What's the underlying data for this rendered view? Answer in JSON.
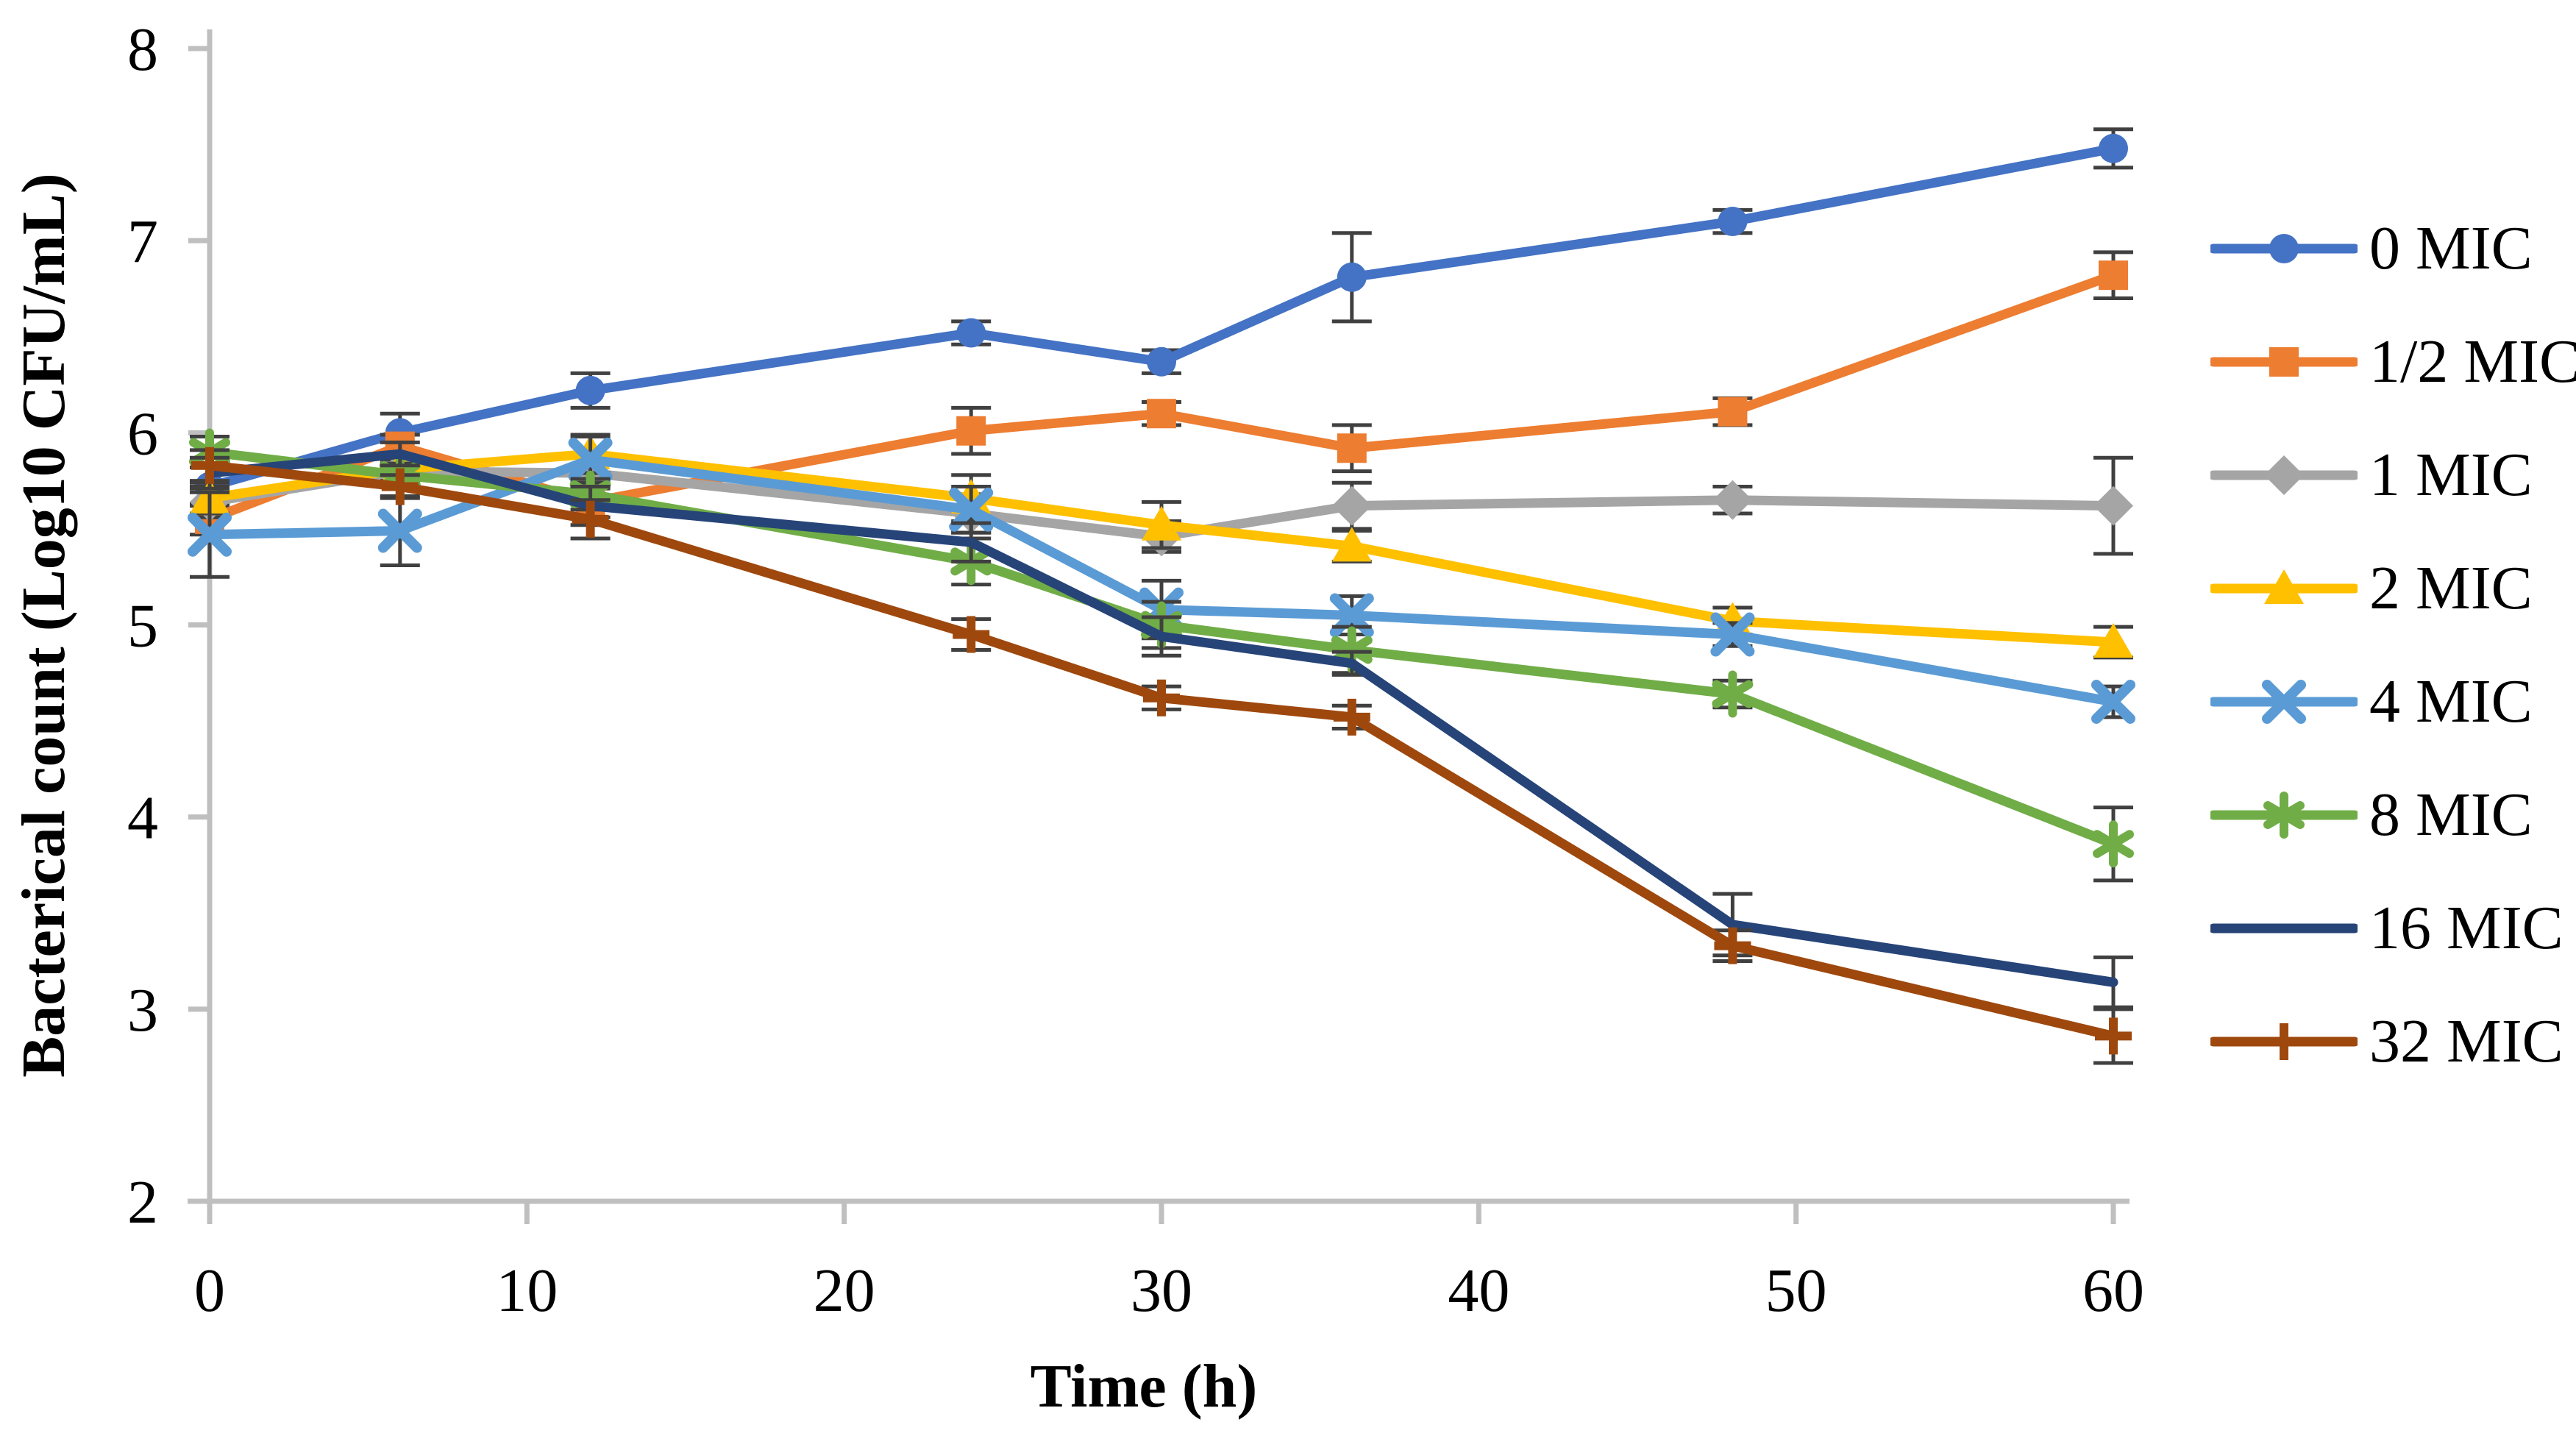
{
  "figure": {
    "background": "#FFFFFF",
    "y_axis_title": "Bacterical count (Log10 CFU/mL)",
    "x_axis_title": "Time (h)"
  },
  "chart_data": {
    "type": "line",
    "title": "",
    "xlabel": "Time (h)",
    "ylabel": "Bacterical count (Log10 CFU/mL)",
    "xlim": [
      0,
      60
    ],
    "ylim": [
      2,
      8
    ],
    "x_ticks": [
      0,
      10,
      20,
      30,
      40,
      50,
      60
    ],
    "y_ticks": [
      8,
      7,
      6,
      5,
      4,
      3,
      2
    ],
    "grid": false,
    "legend_position": "right",
    "axis_color": "#BFBFBF",
    "error_bar_color": "#404040",
    "text_color": "#000000",
    "x": [
      0,
      6,
      12,
      24,
      30,
      36,
      48,
      60
    ],
    "series": [
      {
        "name": "0 MIC",
        "color": "#4472C4",
        "marker": "circle",
        "values": [
          5.72,
          6.0,
          6.22,
          6.52,
          6.37,
          6.81,
          7.1,
          7.48
        ],
        "errors": [
          0.1,
          0.1,
          0.09,
          0.06,
          0.06,
          0.23,
          0.06,
          0.1
        ]
      },
      {
        "name": "1/2 MIC",
        "color": "#ED7D31",
        "marker": "square",
        "values": [
          5.55,
          5.93,
          5.64,
          6.01,
          6.1,
          5.92,
          6.11,
          6.82
        ],
        "errors": [
          0.08,
          0.06,
          0.08,
          0.12,
          0.06,
          0.12,
          0.07,
          0.12
        ]
      },
      {
        "name": "1 MIC",
        "color": "#A5A5A5",
        "marker": "diamond",
        "values": [
          5.64,
          5.8,
          5.79,
          5.58,
          5.46,
          5.62,
          5.65,
          5.62
        ],
        "errors": [
          0.08,
          0.06,
          0.08,
          0.1,
          0.08,
          0.12,
          0.07,
          0.25
        ]
      },
      {
        "name": "2 MIC",
        "color": "#FFC000",
        "marker": "triangle",
        "values": [
          5.66,
          5.81,
          5.89,
          5.66,
          5.52,
          5.41,
          5.02,
          4.91
        ],
        "errors": [
          0.08,
          0.06,
          0.1,
          0.12,
          0.12,
          0.08,
          0.07,
          0.08
        ]
      },
      {
        "name": "4 MIC",
        "color": "#5B9BD5",
        "marker": "x",
        "values": [
          5.47,
          5.49,
          5.86,
          5.6,
          5.08,
          5.05,
          4.95,
          4.6
        ],
        "errors": [
          0.22,
          0.18,
          0.12,
          0.12,
          0.15,
          0.1,
          0.06,
          0.08
        ]
      },
      {
        "name": "8 MIC",
        "color": "#70AD47",
        "marker": "asterisk",
        "values": [
          5.9,
          5.78,
          5.68,
          5.33,
          5.0,
          4.87,
          4.64,
          3.86
        ],
        "errors": [
          0.08,
          0.06,
          0.08,
          0.12,
          0.12,
          0.12,
          0.07,
          0.19
        ]
      },
      {
        "name": "16 MIC",
        "color": "#264478",
        "marker": "none",
        "values": [
          5.79,
          5.89,
          5.62,
          5.43,
          4.94,
          4.8,
          3.44,
          3.14
        ],
        "errors": [
          0.08,
          0.06,
          0.1,
          0.1,
          0.1,
          0.06,
          0.16,
          0.13
        ]
      },
      {
        "name": "32 MIC",
        "color": "#9E480E",
        "marker": "plus",
        "values": [
          5.83,
          5.72,
          5.55,
          4.95,
          4.62,
          4.52,
          3.33,
          2.86
        ],
        "errors": [
          0.08,
          0.06,
          0.1,
          0.08,
          0.06,
          0.06,
          0.08,
          0.14
        ]
      }
    ]
  }
}
